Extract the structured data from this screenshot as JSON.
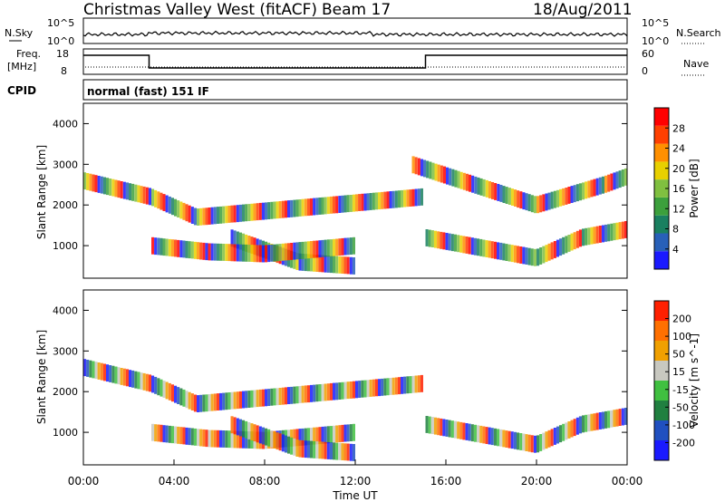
{
  "header": {
    "station": "Christmas Valley West (fitACF)",
    "beam": "Beam 17",
    "date": "18/Aug/2011"
  },
  "params": {
    "nsky_label": "N.Sky",
    "nsearch_label": "N.Search",
    "nsky_ticks": [
      "10^5",
      "10^0"
    ],
    "freq_label": "Freq.",
    "freq_unit": "[MHz]",
    "freq_ticks": [
      "18",
      "8"
    ],
    "nave_label": "Nave",
    "nave_ticks": [
      "60",
      "0"
    ],
    "cpid_label": "CPID",
    "cpid_text": "normal (fast) 151 IF"
  },
  "colors": {
    "power": [
      "#1a1aff",
      "#2860b8",
      "#1a8060",
      "#3ca03c",
      "#80c040",
      "#e8d000",
      "#ff9000",
      "#ff4000",
      "#ff0000"
    ],
    "velocity": [
      "#1a1aff",
      "#2050c0",
      "#208040",
      "#40c040",
      "#c8c8c0",
      "#f0a000",
      "#ff7000",
      "#ff2000"
    ]
  },
  "chart_data": {
    "type": "heatmap",
    "x": {
      "label": "Time UT",
      "range": [
        0,
        24
      ],
      "ticks": [
        0,
        4,
        8,
        12,
        16,
        20,
        24
      ],
      "tick_labels": [
        "00:00",
        "04:00",
        "08:00",
        "12:00",
        "16:00",
        "20:00",
        "00:00"
      ]
    },
    "y": {
      "label": "Slant Range [km]",
      "range": [
        200,
        4500
      ],
      "ticks": [
        1000,
        2000,
        3000,
        4000
      ],
      "tick_labels": [
        "1000",
        "2000",
        "3000",
        "4000"
      ]
    },
    "frequency_MHz": [
      {
        "start": 0,
        "end": 2.9,
        "value": 15.5
      },
      {
        "start": 2.9,
        "end": 15.1,
        "value": 10.5
      },
      {
        "start": 15.1,
        "end": 24,
        "value": 15.5
      }
    ],
    "panels": [
      {
        "name": "power",
        "colorbar_label": "Power [dB]",
        "colorbar_ticks": [
          "28",
          "24",
          "20",
          "16",
          "12",
          "8",
          "4"
        ],
        "range": [
          0,
          32
        ],
        "echo_regions": [
          {
            "t": [
              6.5,
              9.5,
              12,
              12
            ],
            "range_km": [
              1200,
              600,
              500,
              700
            ]
          },
          {
            "t": [
              15.1,
              20,
              22,
              24
            ],
            "range_km": [
              1200,
              700,
              1200,
              1400
            ]
          },
          {
            "t": [
              0,
              3,
              5,
              15
            ],
            "range_km": [
              2600,
              2200,
              1700,
              2200
            ]
          },
          {
            "t": [
              14.5,
              20,
              23,
              24
            ],
            "range_km": [
              3000,
              2000,
              2500,
              2700
            ]
          },
          {
            "t": [
              3,
              5.5,
              8,
              12
            ],
            "range_km": [
              1000,
              850,
              800,
              1000
            ]
          }
        ]
      },
      {
        "name": "velocity",
        "colorbar_label": "Velocity [m s^-1]",
        "colorbar_ticks": [
          "200",
          "100",
          "50",
          "15",
          "-15",
          "-50",
          "-100",
          "-200"
        ],
        "range": [
          -250,
          250
        ],
        "echo_regions": [
          {
            "t": [
              0,
              3,
              5,
              15
            ],
            "range_km": [
              2600,
              2200,
              1700,
              2200
            ]
          },
          {
            "t": [
              15.1,
              20,
              22,
              24
            ],
            "range_km": [
              1200,
              700,
              1200,
              1400
            ]
          },
          {
            "t": [
              3,
              5.5,
              8,
              12
            ],
            "range_km": [
              1000,
              850,
              800,
              1000
            ]
          },
          {
            "t": [
              6.5,
              9.5,
              12,
              12
            ],
            "range_km": [
              1200,
              600,
              500,
              700
            ]
          }
        ]
      }
    ]
  }
}
